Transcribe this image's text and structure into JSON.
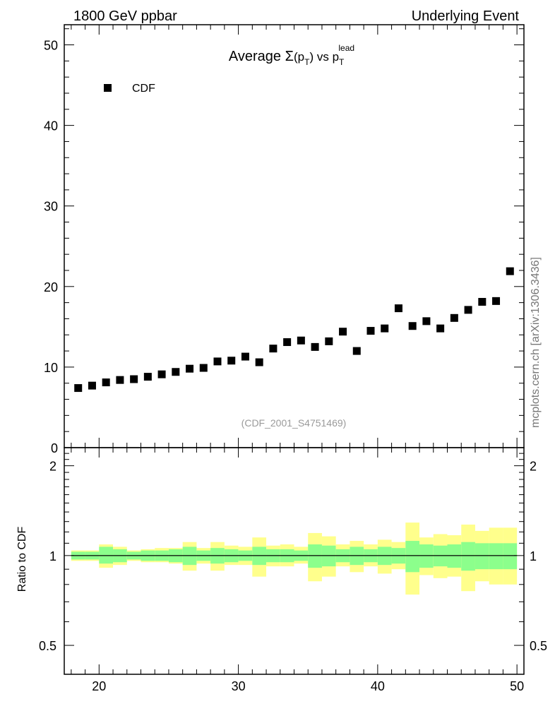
{
  "header": {
    "left": "1800 GeV ppbar",
    "right": "Underlying Event"
  },
  "side_label": "mcplots.cern.ch [arXiv:1306.3436]",
  "ratio_ylabel": "Ratio to CDF",
  "colors": {
    "band_inner": "#8cff8c",
    "band_outer": "#ffff8c",
    "marker": "#000000",
    "watermark": "#9a9a9a"
  },
  "chart_data": {
    "type": "scatter",
    "title": {
      "base": "Average ",
      "sigma": "Σ",
      "open": "(p",
      "sub1": "T",
      "close": ")",
      "vs": " vs p",
      "sub2": "T",
      "sup2": "lead"
    },
    "watermark": "(CDF_2001_S4751469)",
    "legend": {
      "label": "CDF",
      "position": "top-left"
    },
    "xlim": [
      17.5,
      50.5
    ],
    "xticks": [
      20,
      30,
      40,
      50
    ],
    "main": {
      "ylim": [
        0,
        52.5
      ],
      "yticks": [
        0,
        10,
        20,
        30,
        40,
        50
      ],
      "series": [
        {
          "name": "CDF",
          "x": [
            18.5,
            19.5,
            20.5,
            21.5,
            22.5,
            23.5,
            24.5,
            25.5,
            26.5,
            27.5,
            28.5,
            29.5,
            30.5,
            31.5,
            32.5,
            33.5,
            34.5,
            35.5,
            36.5,
            37.5,
            38.5,
            39.5,
            40.5,
            41.5,
            42.5,
            43.5,
            44.5,
            45.5,
            46.5,
            47.5,
            48.5,
            49.5
          ],
          "y": [
            7.4,
            7.7,
            8.1,
            8.4,
            8.5,
            8.8,
            9.1,
            9.4,
            9.8,
            9.9,
            10.7,
            10.8,
            11.3,
            10.6,
            12.3,
            13.1,
            13.3,
            12.5,
            13.2,
            14.4,
            12.0,
            14.5,
            14.8,
            17.3,
            15.1,
            15.7,
            14.8,
            16.1,
            17.1,
            18.1,
            18.2,
            21.9
          ]
        }
      ]
    },
    "ratio": {
      "ylim": [
        0.4,
        2.3
      ],
      "yticks": [
        0.5,
        1,
        2
      ],
      "bins": {
        "lo": [
          18,
          19,
          20,
          21,
          22,
          23,
          24,
          25,
          26,
          27,
          28,
          29,
          30,
          31,
          32,
          33,
          34,
          35,
          36,
          37,
          38,
          39,
          40,
          41,
          42,
          43,
          44,
          45,
          46,
          47,
          48,
          49
        ],
        "hi": [
          19,
          20,
          21,
          22,
          23,
          24,
          25,
          26,
          27,
          28,
          29,
          30,
          31,
          32,
          33,
          34,
          35,
          36,
          37,
          38,
          39,
          40,
          41,
          42,
          43,
          44,
          45,
          46,
          47,
          48,
          49,
          50
        ],
        "in_lo": [
          0.97,
          0.97,
          0.94,
          0.95,
          0.97,
          0.96,
          0.96,
          0.95,
          0.93,
          0.96,
          0.94,
          0.95,
          0.96,
          0.93,
          0.95,
          0.95,
          0.96,
          0.91,
          0.92,
          0.95,
          0.93,
          0.95,
          0.93,
          0.94,
          0.88,
          0.91,
          0.92,
          0.91,
          0.89,
          0.9,
          0.9,
          0.9
        ],
        "in_hi": [
          1.03,
          1.03,
          1.07,
          1.05,
          1.03,
          1.04,
          1.04,
          1.05,
          1.07,
          1.04,
          1.06,
          1.05,
          1.04,
          1.07,
          1.05,
          1.05,
          1.04,
          1.09,
          1.08,
          1.05,
          1.07,
          1.05,
          1.07,
          1.06,
          1.12,
          1.09,
          1.08,
          1.09,
          1.11,
          1.1,
          1.1,
          1.1
        ],
        "out_lo": [
          0.96,
          0.96,
          0.91,
          0.93,
          0.96,
          0.95,
          0.95,
          0.94,
          0.89,
          0.94,
          0.89,
          0.93,
          0.93,
          0.85,
          0.92,
          0.92,
          0.94,
          0.82,
          0.85,
          0.92,
          0.88,
          0.92,
          0.87,
          0.9,
          0.74,
          0.86,
          0.84,
          0.85,
          0.76,
          0.82,
          0.8,
          0.8
        ],
        "out_hi": [
          1.04,
          1.04,
          1.09,
          1.07,
          1.04,
          1.05,
          1.06,
          1.06,
          1.11,
          1.06,
          1.11,
          1.08,
          1.07,
          1.15,
          1.08,
          1.09,
          1.07,
          1.19,
          1.16,
          1.09,
          1.12,
          1.09,
          1.13,
          1.11,
          1.29,
          1.15,
          1.18,
          1.17,
          1.27,
          1.21,
          1.24,
          1.24
        ]
      }
    }
  }
}
